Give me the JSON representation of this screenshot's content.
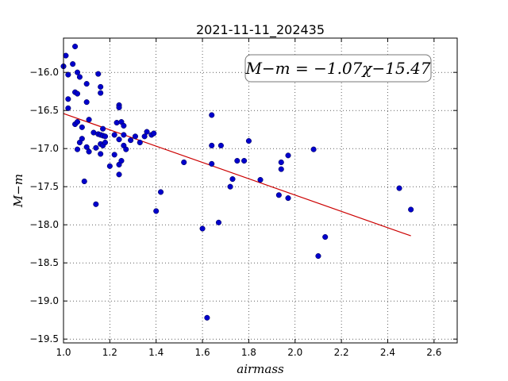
{
  "chart_data": {
    "type": "scatter",
    "title": "2021-11-11_202435",
    "xlabel": "airmass",
    "ylabel": "M−m",
    "xlim": [
      1.0,
      2.7
    ],
    "ylim": [
      -19.55,
      -15.55
    ],
    "y_inverted": true,
    "grid": true,
    "xticks": [
      "1.0",
      "1.2",
      "1.4",
      "1.6",
      "1.8",
      "2.0",
      "2.2",
      "2.4",
      "2.6"
    ],
    "yticks": [
      "−16.0",
      "−16.5",
      "−17.0",
      "−17.5",
      "−18.0",
      "−18.5",
      "−19.0",
      "−19.5"
    ],
    "annotation": "M−m = −1.07χ−15.47",
    "marker_color": "#0000cc",
    "fit_color": "#cc0000",
    "fit": {
      "slope": -1.07,
      "intercept": -15.47,
      "x_range": [
        1.0,
        2.5
      ]
    },
    "points": [
      [
        1.0,
        -15.92
      ],
      [
        1.01,
        -15.78
      ],
      [
        1.02,
        -16.03
      ],
      [
        1.02,
        -16.47
      ],
      [
        1.02,
        -16.35
      ],
      [
        1.04,
        -15.89
      ],
      [
        1.05,
        -15.66
      ],
      [
        1.05,
        -16.26
      ],
      [
        1.06,
        -16.28
      ],
      [
        1.06,
        -16.0
      ],
      [
        1.07,
        -16.06
      ],
      [
        1.05,
        -16.68
      ],
      [
        1.06,
        -16.65
      ],
      [
        1.08,
        -16.72
      ],
      [
        1.06,
        -17.01
      ],
      [
        1.07,
        -16.92
      ],
      [
        1.08,
        -16.87
      ],
      [
        1.09,
        -17.43
      ],
      [
        1.1,
        -16.39
      ],
      [
        1.1,
        -16.15
      ],
      [
        1.11,
        -16.62
      ],
      [
        1.1,
        -16.98
      ],
      [
        1.11,
        -17.04
      ],
      [
        1.13,
        -16.79
      ],
      [
        1.14,
        -16.99
      ],
      [
        1.14,
        -17.73
      ],
      [
        1.15,
        -16.02
      ],
      [
        1.16,
        -16.19
      ],
      [
        1.16,
        -16.27
      ],
      [
        1.15,
        -16.81
      ],
      [
        1.16,
        -16.82
      ],
      [
        1.17,
        -16.74
      ],
      [
        1.17,
        -16.83
      ],
      [
        1.16,
        -16.94
      ],
      [
        1.17,
        -16.96
      ],
      [
        1.18,
        -16.92
      ],
      [
        1.18,
        -16.84
      ],
      [
        1.16,
        -17.07
      ],
      [
        1.2,
        -17.23
      ],
      [
        1.22,
        -16.82
      ],
      [
        1.22,
        -17.08
      ],
      [
        1.23,
        -16.66
      ],
      [
        1.24,
        -16.43
      ],
      [
        1.24,
        -16.46
      ],
      [
        1.24,
        -16.88
      ],
      [
        1.24,
        -17.21
      ],
      [
        1.24,
        -17.34
      ],
      [
        1.25,
        -16.65
      ],
      [
        1.26,
        -16.7
      ],
      [
        1.26,
        -16.82
      ],
      [
        1.26,
        -16.96
      ],
      [
        1.27,
        -17.01
      ],
      [
        1.25,
        -17.16
      ],
      [
        1.29,
        -16.89
      ],
      [
        1.31,
        -16.84
      ],
      [
        1.33,
        -16.92
      ],
      [
        1.35,
        -16.84
      ],
      [
        1.36,
        -16.78
      ],
      [
        1.38,
        -16.82
      ],
      [
        1.39,
        -16.8
      ],
      [
        1.4,
        -17.82
      ],
      [
        1.42,
        -17.57
      ],
      [
        1.52,
        -17.18
      ],
      [
        1.6,
        -18.05
      ],
      [
        1.62,
        -19.22
      ],
      [
        1.64,
        -16.56
      ],
      [
        1.64,
        -16.96
      ],
      [
        1.64,
        -17.2
      ],
      [
        1.67,
        -17.97
      ],
      [
        1.68,
        -16.96
      ],
      [
        1.72,
        -17.5
      ],
      [
        1.73,
        -17.4
      ],
      [
        1.75,
        -17.16
      ],
      [
        1.78,
        -17.16
      ],
      [
        1.8,
        -16.9
      ],
      [
        1.85,
        -17.41
      ],
      [
        1.93,
        -17.61
      ],
      [
        1.94,
        -17.18
      ],
      [
        1.94,
        -17.27
      ],
      [
        1.97,
        -17.09
      ],
      [
        1.97,
        -17.65
      ],
      [
        2.08,
        -17.01
      ],
      [
        2.1,
        -18.41
      ],
      [
        2.13,
        -18.16
      ],
      [
        2.45,
        -17.52
      ],
      [
        2.5,
        -17.8
      ]
    ]
  }
}
